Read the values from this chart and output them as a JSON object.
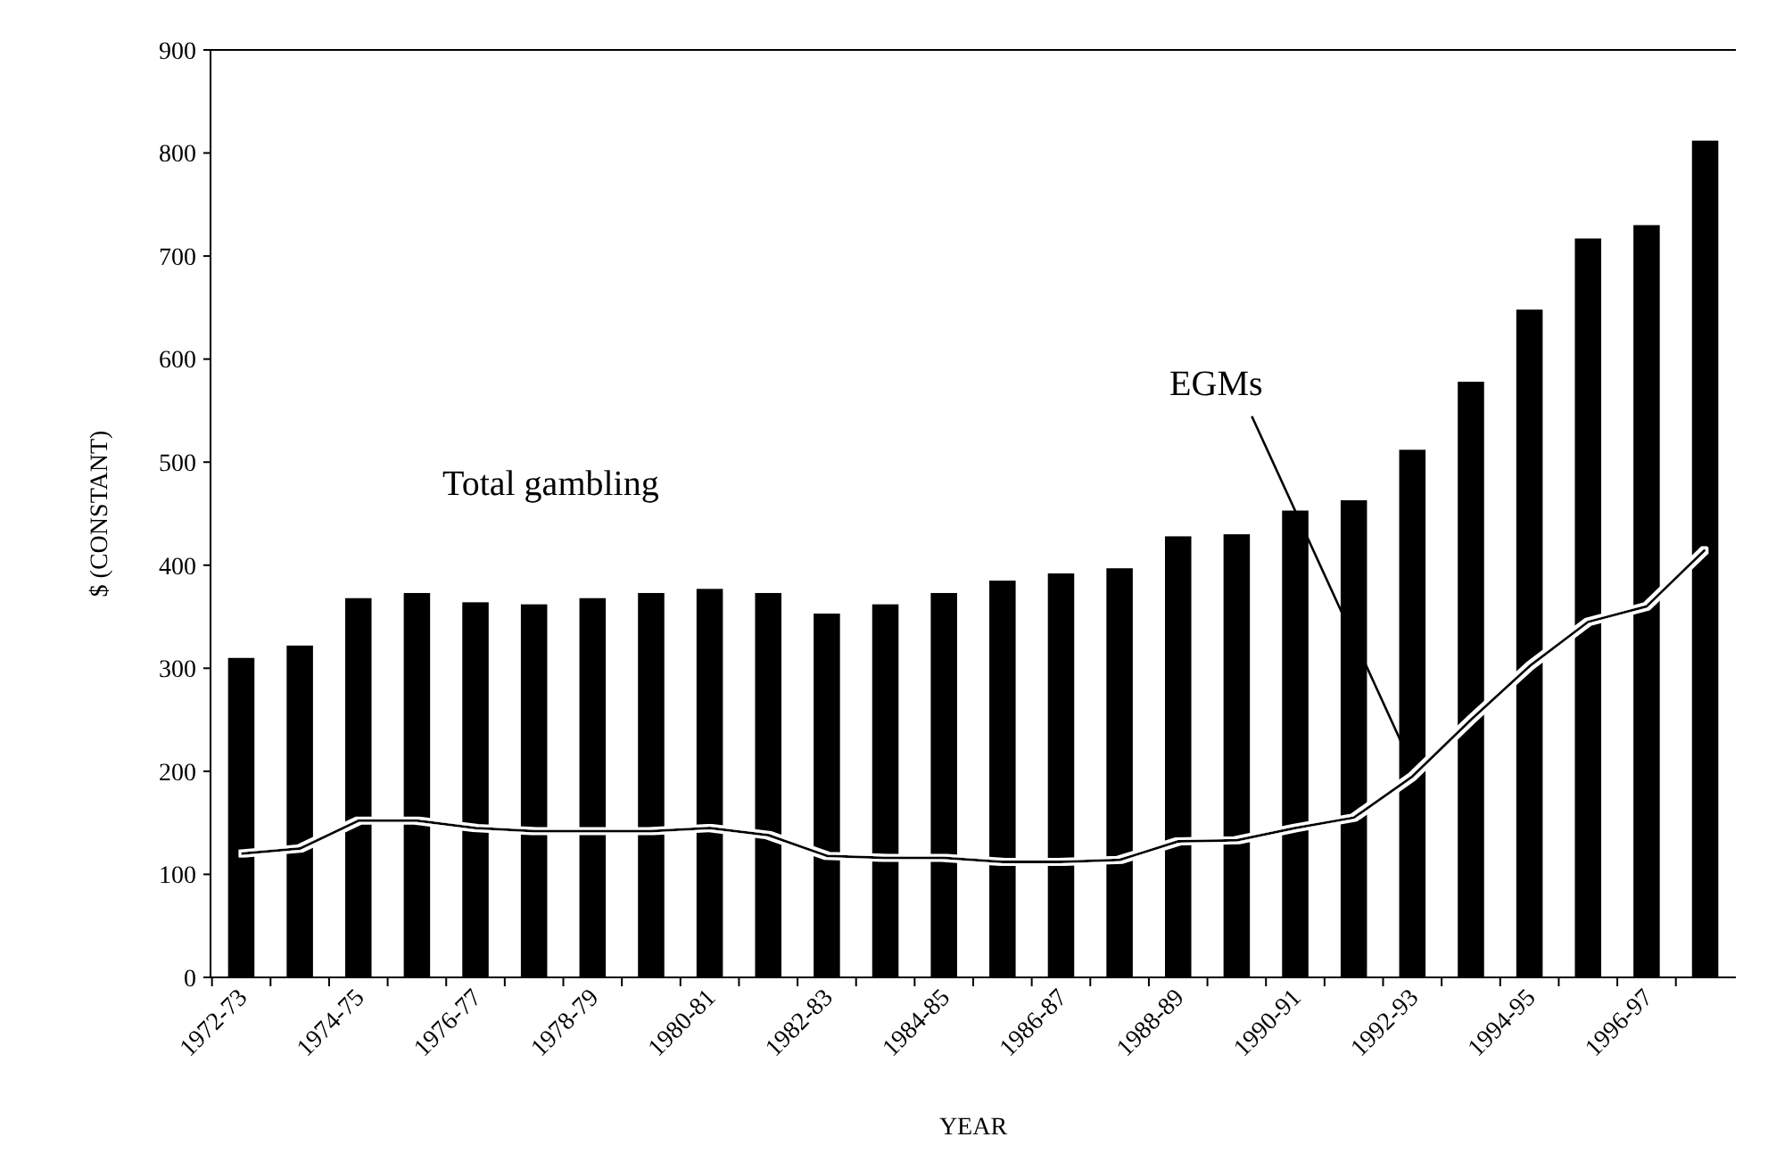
{
  "chart_data": {
    "type": "bar",
    "xlabel": "YEAR",
    "ylabel": "$ (CONSTANT)",
    "categories": [
      "1972-73",
      null,
      "1974-75",
      null,
      "1976-77",
      null,
      "1978-79",
      null,
      "1980-81",
      null,
      "1982-83",
      null,
      "1984-85",
      null,
      "1986-87",
      null,
      "1988-89",
      null,
      "1990-91",
      null,
      "1992-93",
      null,
      "1994-95",
      null,
      "1996-97",
      null
    ],
    "series": [
      {
        "color": "#000000",
        "values": [
          310,
          322,
          368,
          373,
          364,
          362,
          368,
          373,
          377,
          373,
          353,
          362,
          373,
          385,
          392,
          397,
          428,
          430,
          453,
          463,
          512,
          578,
          648,
          717,
          730,
          812
        ]
      },
      {
        "type": "line",
        "color": "#000000",
        "values": [
          120,
          125,
          152,
          152,
          145,
          142,
          142,
          142,
          145,
          138,
          118,
          116,
          116,
          112,
          112,
          114,
          132,
          133,
          145,
          155,
          195,
          250,
          302,
          345,
          360,
          415
        ]
      }
    ],
    "ylim": [
      0,
      900
    ],
    "yticks": [
      0,
      100,
      200,
      300,
      400,
      500,
      600,
      700,
      800,
      900
    ],
    "grid": false,
    "annotations": [
      "Total gambling",
      "EGMs"
    ]
  }
}
